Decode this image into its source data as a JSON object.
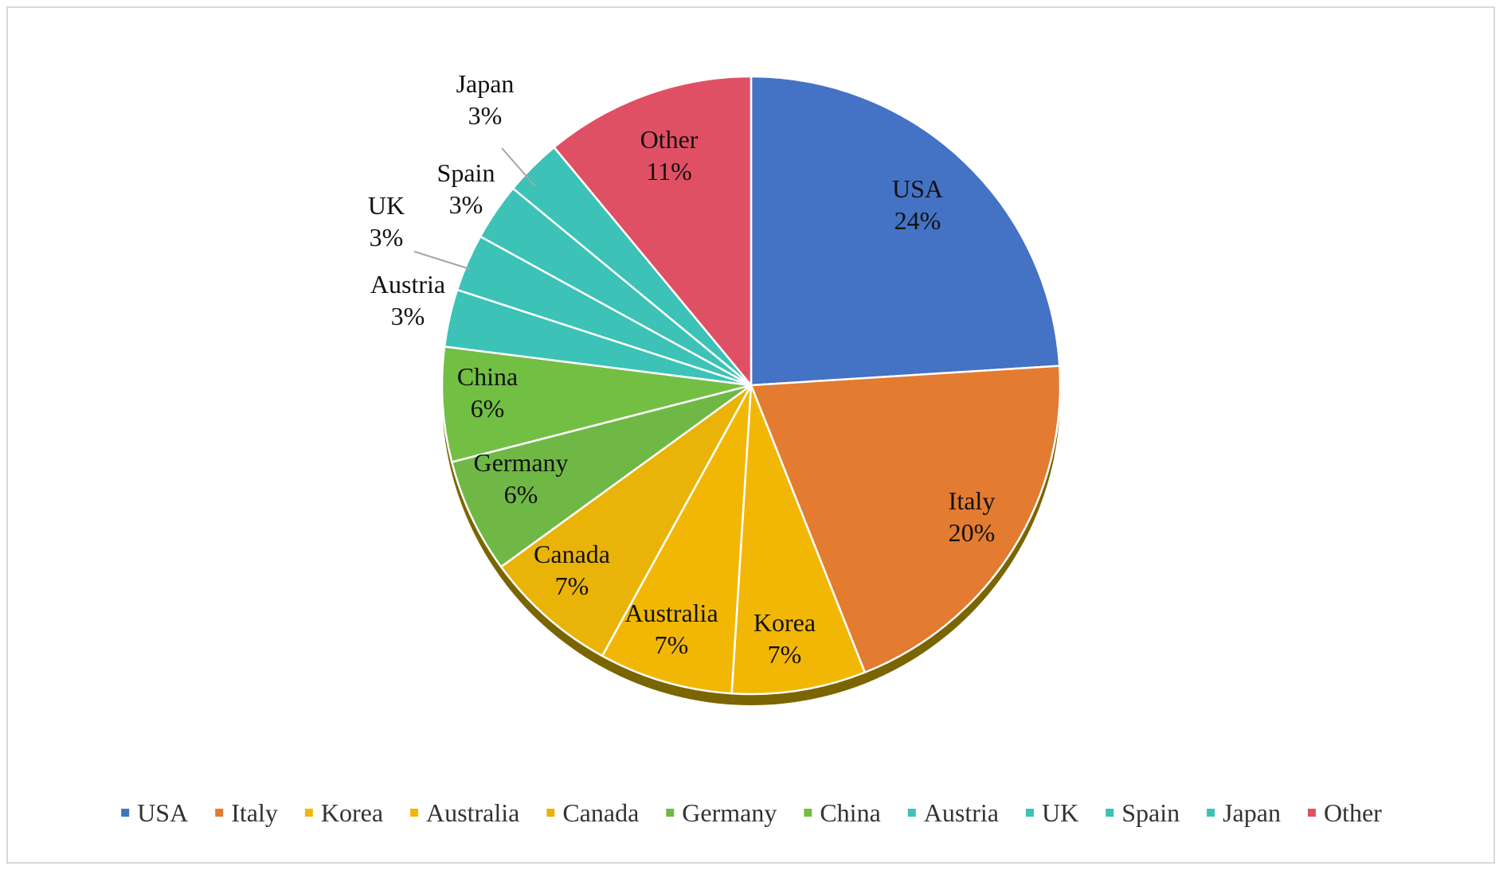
{
  "chart_data": {
    "type": "pie",
    "title": "",
    "slices": [
      {
        "name": "USA",
        "value": 24,
        "label": "24%",
        "color": "#4472C4"
      },
      {
        "name": "Italy",
        "value": 20,
        "label": "20%",
        "color": "#E37B31"
      },
      {
        "name": "Korea",
        "value": 7,
        "label": "7%",
        "color": "#F2B705"
      },
      {
        "name": "Australia",
        "value": 7,
        "label": "7%",
        "color": "#F2B705"
      },
      {
        "name": "Canada",
        "value": 7,
        "label": "7%",
        "color": "#EAB308"
      },
      {
        "name": "Germany",
        "value": 6,
        "label": "6%",
        "color": "#70B846"
      },
      {
        "name": "China",
        "value": 6,
        "label": "6%",
        "color": "#72BF44"
      },
      {
        "name": "Austria",
        "value": 3,
        "label": "3%",
        "color": "#3CC2B6"
      },
      {
        "name": "UK",
        "value": 3,
        "label": "3%",
        "color": "#3CC2B6"
      },
      {
        "name": "Spain",
        "value": 3,
        "label": "3%",
        "color": "#3CC2B6"
      },
      {
        "name": "Japan",
        "value": 3,
        "label": "3%",
        "color": "#3CC2B6"
      },
      {
        "name": "Other",
        "value": 11,
        "label": "11%",
        "color": "#E05065"
      }
    ],
    "legend_position": "bottom",
    "shadow_color": "#7a6500"
  }
}
